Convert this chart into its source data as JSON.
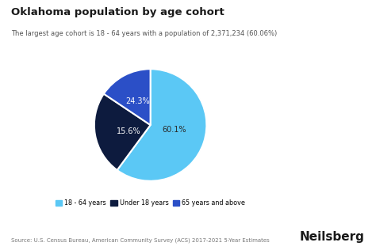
{
  "title": "Oklahoma population by age cohort",
  "subtitle": "The largest age cohort is 18 - 64 years with a population of 2,371,234 (60.06%)",
  "slices": [
    60.1,
    24.3,
    15.6
  ],
  "labels": [
    "18 - 64 years",
    "Under 18 years",
    "65 years and above"
  ],
  "colors": [
    "#5BC8F5",
    "#0D1B3E",
    "#2B4FC7"
  ],
  "pct_labels": [
    "60.1%",
    "24.3%",
    "15.6%"
  ],
  "legend_colors": [
    "#5BC8F5",
    "#0D1B3E",
    "#2B4FC7"
  ],
  "source_text": "Source: U.S. Census Bureau, American Community Survey (ACS) 2017-2021 5-Year Estimates",
  "brand": "Neilsberg",
  "background_color": "#FFFFFF",
  "startangle": 90
}
